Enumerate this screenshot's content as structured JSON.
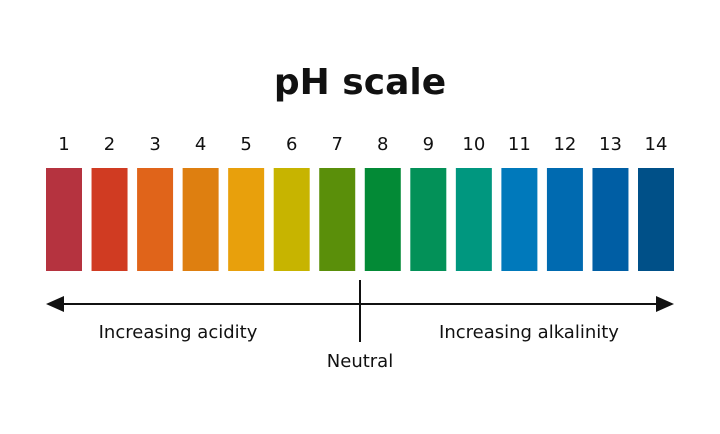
{
  "title": "pH scale",
  "levels": [
    {
      "label": "1",
      "color": "#b5333f"
    },
    {
      "label": "2",
      "color": "#d03b22"
    },
    {
      "label": "3",
      "color": "#e0641a"
    },
    {
      "label": "4",
      "color": "#de7f10"
    },
    {
      "label": "5",
      "color": "#e8a00c"
    },
    {
      "label": "6",
      "color": "#c7b400"
    },
    {
      "label": "7",
      "color": "#5a8f0a"
    },
    {
      "label": "8",
      "color": "#038a36"
    },
    {
      "label": "9",
      "color": "#039158"
    },
    {
      "label": "10",
      "color": "#00977f"
    },
    {
      "label": "11",
      "color": "#0079bb"
    },
    {
      "label": "12",
      "color": "#006ab0"
    },
    {
      "label": "13",
      "color": "#005ea4"
    },
    {
      "label": "14",
      "color": "#005088"
    }
  ],
  "acidity_label": "Increasing acidity",
  "alkalinity_label": "Increasing alkalinity",
  "neutral_label": "Neutral"
}
